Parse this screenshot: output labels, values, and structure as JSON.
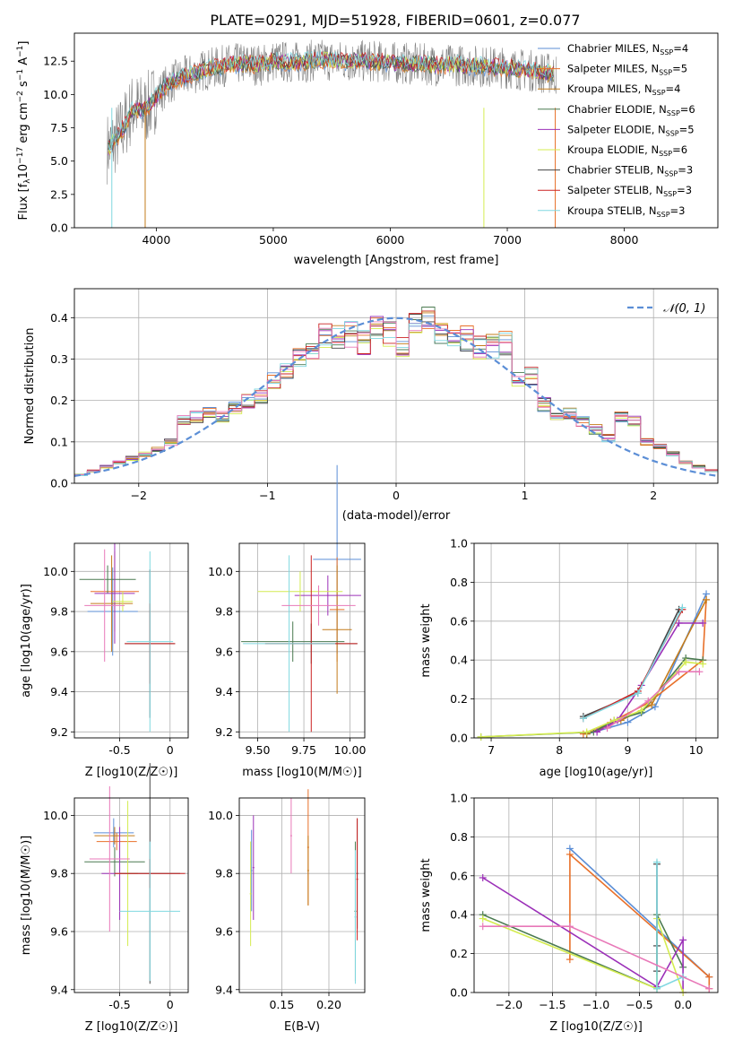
{
  "title": "PLATE=0291, MJD=51928, FIBERID=0601, z=0.077",
  "chart_data": [
    {
      "id": "spectrum",
      "type": "line",
      "xlabel": "wavelength [Angstrom, rest frame]",
      "ylabel": "Flux [f_λ 10^-17 erg cm^-2 s^-1 A^-1]",
      "xlim": [
        3300,
        8800
      ],
      "ylim": [
        0,
        14.6
      ],
      "xticks": [
        4000,
        5000,
        6000,
        7000,
        8000
      ],
      "yticks": [
        0.0,
        2.5,
        5.0,
        7.5,
        10.0,
        12.5
      ],
      "legend_position": "right",
      "data_note_source": "observed spectrum (grey) with 9 SSP model fits",
      "observed": {
        "name": "",
        "color": "#808080",
        "x": [
          3600,
          3700,
          3800,
          3900,
          4000,
          4100,
          4200,
          4300,
          4400,
          4500,
          4600,
          4700,
          4800,
          4900,
          5000,
          5200,
          5400,
          5600,
          5800,
          6000,
          6200,
          6400,
          6600,
          6800,
          7000,
          7200,
          7400
        ],
        "y": [
          6.0,
          7.2,
          9.0,
          8.8,
          9.8,
          10.8,
          11.2,
          11.5,
          11.8,
          12.0,
          12.2,
          12.3,
          12.3,
          12.2,
          12.5,
          12.4,
          12.6,
          12.5,
          12.5,
          12.4,
          12.3,
          12.2,
          12.2,
          12.1,
          12.0,
          11.8,
          11.5
        ]
      },
      "series": [
        {
          "name": "Chabrier MILES, N_SSP=4",
          "label_main": "Chabrier MILES, N",
          "label_sub": "SSP",
          "label_tail": "=4",
          "color": "#5b8ed6"
        },
        {
          "name": "Salpeter MILES, N_SSP=5",
          "label_main": "Salpeter MILES, N",
          "label_sub": "SSP",
          "label_tail": "=5",
          "color": "#e8702a"
        },
        {
          "name": "Kroupa MILES, N_SSP=4",
          "label_main": "Kroupa MILES, N",
          "label_sub": "SSP",
          "label_tail": "=4",
          "color": "#c47c1c"
        },
        {
          "name": "Chabrier ELODIE, N_SSP=6",
          "label_main": "Chabrier ELODIE, N",
          "label_sub": "SSP",
          "label_tail": "=6",
          "color": "#4a7a50"
        },
        {
          "name": "Salpeter ELODIE, N_SSP=5",
          "label_main": "Salpeter ELODIE, N",
          "label_sub": "SSP",
          "label_tail": "=5",
          "color": "#9b30b8"
        },
        {
          "name": "Kroupa ELODIE, N_SSP=6",
          "label_main": "Kroupa ELODIE, N",
          "label_sub": "SSP",
          "label_tail": "=6",
          "color": "#d4ec50"
        },
        {
          "name": "Chabrier STELIB, N_SSP=3",
          "label_main": "Chabrier STELIB, N",
          "label_sub": "SSP",
          "label_tail": "=3",
          "color": "#444444"
        },
        {
          "name": "Salpeter STELIB, N_SSP=3",
          "label_main": "Salpeter STELIB, N",
          "label_sub": "SSP",
          "label_tail": "=3",
          "color": "#cc2222"
        },
        {
          "name": "Kroupa STELIB, N_SSP=3",
          "label_main": "Kroupa STELIB, N",
          "label_sub": "SSP",
          "label_tail": "=3",
          "color": "#80d8e0"
        }
      ]
    },
    {
      "id": "residuals",
      "type": "line",
      "xlabel": "(data-model)/error",
      "ylabel": "Normed distribution",
      "xlim": [
        -2.5,
        2.5
      ],
      "ylim": [
        0,
        0.47
      ],
      "xticks": [
        -2,
        -1,
        0,
        1,
        2
      ],
      "yticks": [
        0.0,
        0.1,
        0.2,
        0.3,
        0.4
      ],
      "grid": true,
      "legend_position": "top-right",
      "reference": {
        "name": "N(0,1)",
        "color": "#5b8ed6",
        "mean": 0,
        "std": 1
      },
      "hist_bins_x": [
        -2.5,
        -2.4,
        -2.3,
        -2.2,
        -2.1,
        -2.0,
        -1.9,
        -1.8,
        -1.7,
        -1.6,
        -1.5,
        -1.4,
        -1.3,
        -1.2,
        -1.1,
        -1.0,
        -0.9,
        -0.8,
        -0.7,
        -0.6,
        -0.5,
        -0.4,
        -0.3,
        -0.2,
        -0.1,
        0.0,
        0.1,
        0.2,
        0.3,
        0.4,
        0.5,
        0.6,
        0.7,
        0.8,
        0.9,
        1.0,
        1.1,
        1.2,
        1.3,
        1.4,
        1.5,
        1.6,
        1.7,
        1.8,
        1.9,
        2.0,
        2.1,
        2.2,
        2.3,
        2.4
      ],
      "hist_values": [
        0.02,
        0.03,
        0.04,
        0.05,
        0.06,
        0.07,
        0.08,
        0.1,
        0.15,
        0.16,
        0.17,
        0.16,
        0.18,
        0.2,
        0.21,
        0.25,
        0.27,
        0.3,
        0.31,
        0.36,
        0.35,
        0.36,
        0.34,
        0.37,
        0.36,
        0.33,
        0.38,
        0.41,
        0.37,
        0.36,
        0.35,
        0.33,
        0.33,
        0.34,
        0.25,
        0.26,
        0.19,
        0.16,
        0.17,
        0.15,
        0.13,
        0.11,
        0.16,
        0.15,
        0.1,
        0.09,
        0.07,
        0.05,
        0.04,
        0.03
      ]
    },
    {
      "id": "age-vs-Z",
      "type": "scatter",
      "xlabel": "Z [log10(Z/Z☉)]",
      "ylabel": "age [log10(age/yr)]",
      "xlim": [
        -0.95,
        0.18
      ],
      "ylim": [
        9.17,
        10.14
      ],
      "xticks": [
        -0.5,
        0.0
      ],
      "ytick_labels": [
        "9.2",
        "9.4",
        "9.6",
        "9.8",
        "10.0"
      ],
      "yticks": [
        9.2,
        9.4,
        9.6,
        9.8,
        10.0
      ],
      "grid": true
    },
    {
      "id": "age-vs-mass",
      "type": "scatter",
      "xlabel": "mass [log10(M/M☉)]",
      "xlim": [
        9.4,
        10.08
      ],
      "ylim": [
        9.17,
        10.14
      ],
      "xticks": [
        9.5,
        9.75,
        10.0
      ],
      "xtick_labels": [
        "9.50",
        "9.75",
        "10.00"
      ],
      "ytick_labels": [
        "9.2",
        "9.4",
        "9.6",
        "9.8",
        "10.0"
      ],
      "yticks": [
        9.2,
        9.4,
        9.6,
        9.8,
        10.0
      ],
      "grid": true
    },
    {
      "id": "massweight-vs-age",
      "type": "line",
      "xlabel": "age [log10(age/yr)]",
      "ylabel": "mass weight",
      "xlim": [
        6.75,
        10.32
      ],
      "ylim": [
        0,
        1
      ],
      "xticks": [
        7,
        8,
        9,
        10
      ],
      "yticks": [
        0.0,
        0.2,
        0.4,
        0.6,
        0.8,
        1.0
      ],
      "grid": true,
      "series": [
        {
          "name": "Chabrier MILES, N_SSP=4",
          "color": "#5b8ed6",
          "x": [
            8.4,
            9.0,
            9.4,
            10.15
          ],
          "y": [
            0.02,
            0.08,
            0.16,
            0.74
          ]
        },
        {
          "name": "Salpeter MILES, N_SSP=5",
          "color": "#e8702a",
          "x": [
            8.35,
            8.75,
            9.3,
            10.1,
            10.15
          ],
          "y": [
            0.02,
            0.08,
            0.18,
            0.4,
            0.71
          ]
        },
        {
          "name": "Kroupa MILES, N_SSP=4",
          "color": "#c47c1c",
          "x": [
            8.4,
            8.9,
            9.35,
            10.15
          ],
          "y": [
            0.02,
            0.09,
            0.17,
            0.71
          ]
        },
        {
          "name": "Chabrier ELODIE, N_SSP=6",
          "color": "#4a7a50",
          "x": [
            6.85,
            8.5,
            8.8,
            9.2,
            9.85,
            10.1
          ],
          "y": [
            0.005,
            0.03,
            0.09,
            0.13,
            0.41,
            0.4
          ]
        },
        {
          "name": "Salpeter ELODIE, N_SSP=5",
          "color": "#9b30b8",
          "x": [
            8.55,
            8.85,
            9.2,
            9.75,
            10.1
          ],
          "y": [
            0.03,
            0.09,
            0.27,
            0.59,
            0.59
          ]
        },
        {
          "name": "Kroupa ELODIE, N_SSP=6",
          "color": "#d4ec50",
          "x": [
            6.85,
            8.4,
            8.8,
            9.2,
            9.85,
            10.1
          ],
          "y": [
            0.005,
            0.03,
            0.09,
            0.14,
            0.39,
            0.38
          ]
        },
        {
          "name": "Chabrier STELIB, N_SSP=3",
          "color": "#444444",
          "x": [
            8.35,
            9.15,
            9.75
          ],
          "y": [
            0.11,
            0.23,
            0.66
          ]
        },
        {
          "name": "Salpeter STELIB, N_SSP=3",
          "color": "#cc2222",
          "x": [
            8.35,
            9.15,
            9.8
          ],
          "y": [
            0.1,
            0.24,
            0.66
          ]
        },
        {
          "name": "Kroupa STELIB, N_SSP=3",
          "color": "#80d8e0",
          "x": [
            8.35,
            9.15,
            9.8
          ],
          "y": [
            0.1,
            0.23,
            0.67
          ]
        },
        {
          "name": "pink",
          "color": "#e878b8",
          "x": [
            8.7,
            9.3,
            9.75,
            10.05
          ],
          "y": [
            0.05,
            0.19,
            0.34,
            0.34
          ]
        }
      ]
    },
    {
      "id": "mass-vs-Z",
      "type": "scatter",
      "xlabel": "Z [log10(Z/Z☉)]",
      "ylabel": "mass [log10(M/M☉)]",
      "xlim": [
        -0.95,
        0.18
      ],
      "ylim": [
        9.39,
        10.06
      ],
      "xticks": [
        -0.5,
        0.0
      ],
      "yticks": [
        9.4,
        9.6,
        9.8,
        10.0
      ],
      "ytick_labels": [
        "9.4",
        "9.6",
        "9.8",
        "10.0"
      ],
      "grid": true
    },
    {
      "id": "mass-vs-EBV",
      "type": "scatter",
      "xlabel": "E(B-V)",
      "xlim": [
        0.105,
        0.238
      ],
      "ylim": [
        9.39,
        10.06
      ],
      "xticks": [
        0.15,
        0.2
      ],
      "xtick_labels": [
        "0.15",
        "0.20"
      ],
      "yticks": [
        9.4,
        9.6,
        9.8,
        10.0
      ],
      "ytick_labels": [
        "9.4",
        "9.6",
        "9.8",
        "10.0"
      ],
      "grid": true
    },
    {
      "id": "massweight-vs-Z",
      "type": "line",
      "xlabel": "Z [log10(Z/Z☉)]",
      "ylabel": "mass weight",
      "xlim": [
        -2.4,
        0.4
      ],
      "ylim": [
        0,
        1
      ],
      "xticks": [
        -2.0,
        -1.5,
        -1.0,
        -0.5,
        0.0
      ],
      "xtick_labels": [
        "−2.0",
        "−1.5",
        "−1.0",
        "−0.5",
        "0.0"
      ],
      "yticks": [
        0.0,
        0.2,
        0.4,
        0.6,
        0.8,
        1.0
      ],
      "grid": true,
      "series": [
        {
          "name": "Chabrier MILES, N_SSP=4",
          "color": "#5b8ed6",
          "x": [
            -1.3,
            0.3
          ],
          "y": [
            0.74,
            0.08
          ]
        },
        {
          "name": "Salpeter MILES, N_SSP=5",
          "color": "#e8702a",
          "x": [
            -1.3,
            -1.3,
            0.3,
            0.3
          ],
          "y": [
            0.17,
            0.71,
            0.08,
            0.02
          ]
        },
        {
          "name": "Chabrier ELODIE, N_SSP=6",
          "color": "#4a7a50",
          "x": [
            -2.3,
            -0.3,
            -0.3,
            0.0
          ],
          "y": [
            0.4,
            0.02,
            0.4,
            0.13
          ]
        },
        {
          "name": "Salpeter ELODIE, N_SSP=5",
          "color": "#9b30b8",
          "x": [
            -2.3,
            -0.3,
            0.0,
            0.0
          ],
          "y": [
            0.59,
            0.03,
            0.27,
            0.0
          ]
        },
        {
          "name": "Kroupa ELODIE, N_SSP=6",
          "color": "#d4ec50",
          "x": [
            -2.3,
            -0.3,
            -0.3,
            0.0
          ],
          "y": [
            0.38,
            0.02,
            0.38,
            0.0
          ]
        },
        {
          "name": "Chabrier STELIB, N_SSP=3",
          "color": "#444444",
          "x": [
            -0.3,
            -0.3,
            -0.3
          ],
          "y": [
            0.66,
            0.24,
            0.11
          ]
        },
        {
          "name": "Kroupa STELIB, N_SSP=3",
          "color": "#80d8e0",
          "x": [
            -0.3,
            -0.3,
            0.0
          ],
          "y": [
            0.67,
            0.02,
            0.08
          ]
        },
        {
          "name": "pink",
          "color": "#e878b8",
          "x": [
            -2.3,
            -1.3,
            0.3
          ],
          "y": [
            0.34,
            0.34,
            0.02
          ]
        }
      ]
    }
  ]
}
